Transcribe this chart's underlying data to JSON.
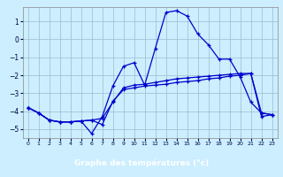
{
  "xlabel": "Graphe des températures (°c)",
  "plot_bg_color": "#cceeff",
  "fig_bg_color": "#cceeff",
  "xlabel_bg_color": "#0000aa",
  "xlabel_text_color": "#ffffff",
  "line_color": "#0000cc",
  "grid_color": "#99bbcc",
  "xlim": [
    -0.5,
    23.5
  ],
  "ylim": [
    -5.5,
    1.8
  ],
  "yticks": [
    1,
    0,
    -1,
    -2,
    -3,
    -4,
    -5
  ],
  "xticks": [
    0,
    1,
    2,
    3,
    4,
    5,
    6,
    7,
    8,
    9,
    10,
    11,
    12,
    13,
    14,
    15,
    16,
    17,
    18,
    19,
    20,
    21,
    22,
    23
  ],
  "series1_x": [
    0,
    1,
    2,
    3,
    4,
    5,
    6,
    7,
    8,
    9,
    10,
    11,
    12,
    13,
    14,
    15,
    16,
    17,
    18,
    19,
    20,
    21,
    22,
    23
  ],
  "series1_y": [
    -3.8,
    -4.1,
    -4.5,
    -4.6,
    -4.6,
    -4.55,
    -4.5,
    -4.4,
    -3.5,
    -2.7,
    -2.55,
    -2.5,
    -2.4,
    -2.3,
    -2.2,
    -2.15,
    -2.1,
    -2.05,
    -2.0,
    -1.95,
    -1.9,
    -1.9,
    -4.1,
    -4.2
  ],
  "series2_x": [
    0,
    1,
    2,
    3,
    4,
    5,
    6,
    7,
    8,
    9,
    10,
    11,
    12,
    13,
    14,
    15,
    16,
    17,
    18,
    19,
    20,
    21,
    22,
    23
  ],
  "series2_y": [
    -3.8,
    -4.1,
    -4.5,
    -4.6,
    -4.6,
    -4.55,
    -5.25,
    -4.3,
    -2.6,
    -1.5,
    -1.3,
    -2.55,
    -0.5,
    1.5,
    1.6,
    1.3,
    0.3,
    -0.3,
    -1.1,
    -1.1,
    -2.1,
    -3.5,
    -4.1,
    -4.2
  ],
  "series3_x": [
    0,
    1,
    2,
    3,
    4,
    5,
    6,
    7,
    8,
    9,
    10,
    11,
    12,
    13,
    14,
    15,
    16,
    17,
    18,
    19,
    20,
    21,
    22,
    23
  ],
  "series3_y": [
    -3.8,
    -4.1,
    -4.5,
    -4.6,
    -4.6,
    -4.55,
    -4.5,
    -4.75,
    -3.45,
    -2.8,
    -2.7,
    -2.6,
    -2.55,
    -2.5,
    -2.4,
    -2.35,
    -2.3,
    -2.2,
    -2.15,
    -2.05,
    -2.0,
    -1.9,
    -4.3,
    -4.2
  ]
}
